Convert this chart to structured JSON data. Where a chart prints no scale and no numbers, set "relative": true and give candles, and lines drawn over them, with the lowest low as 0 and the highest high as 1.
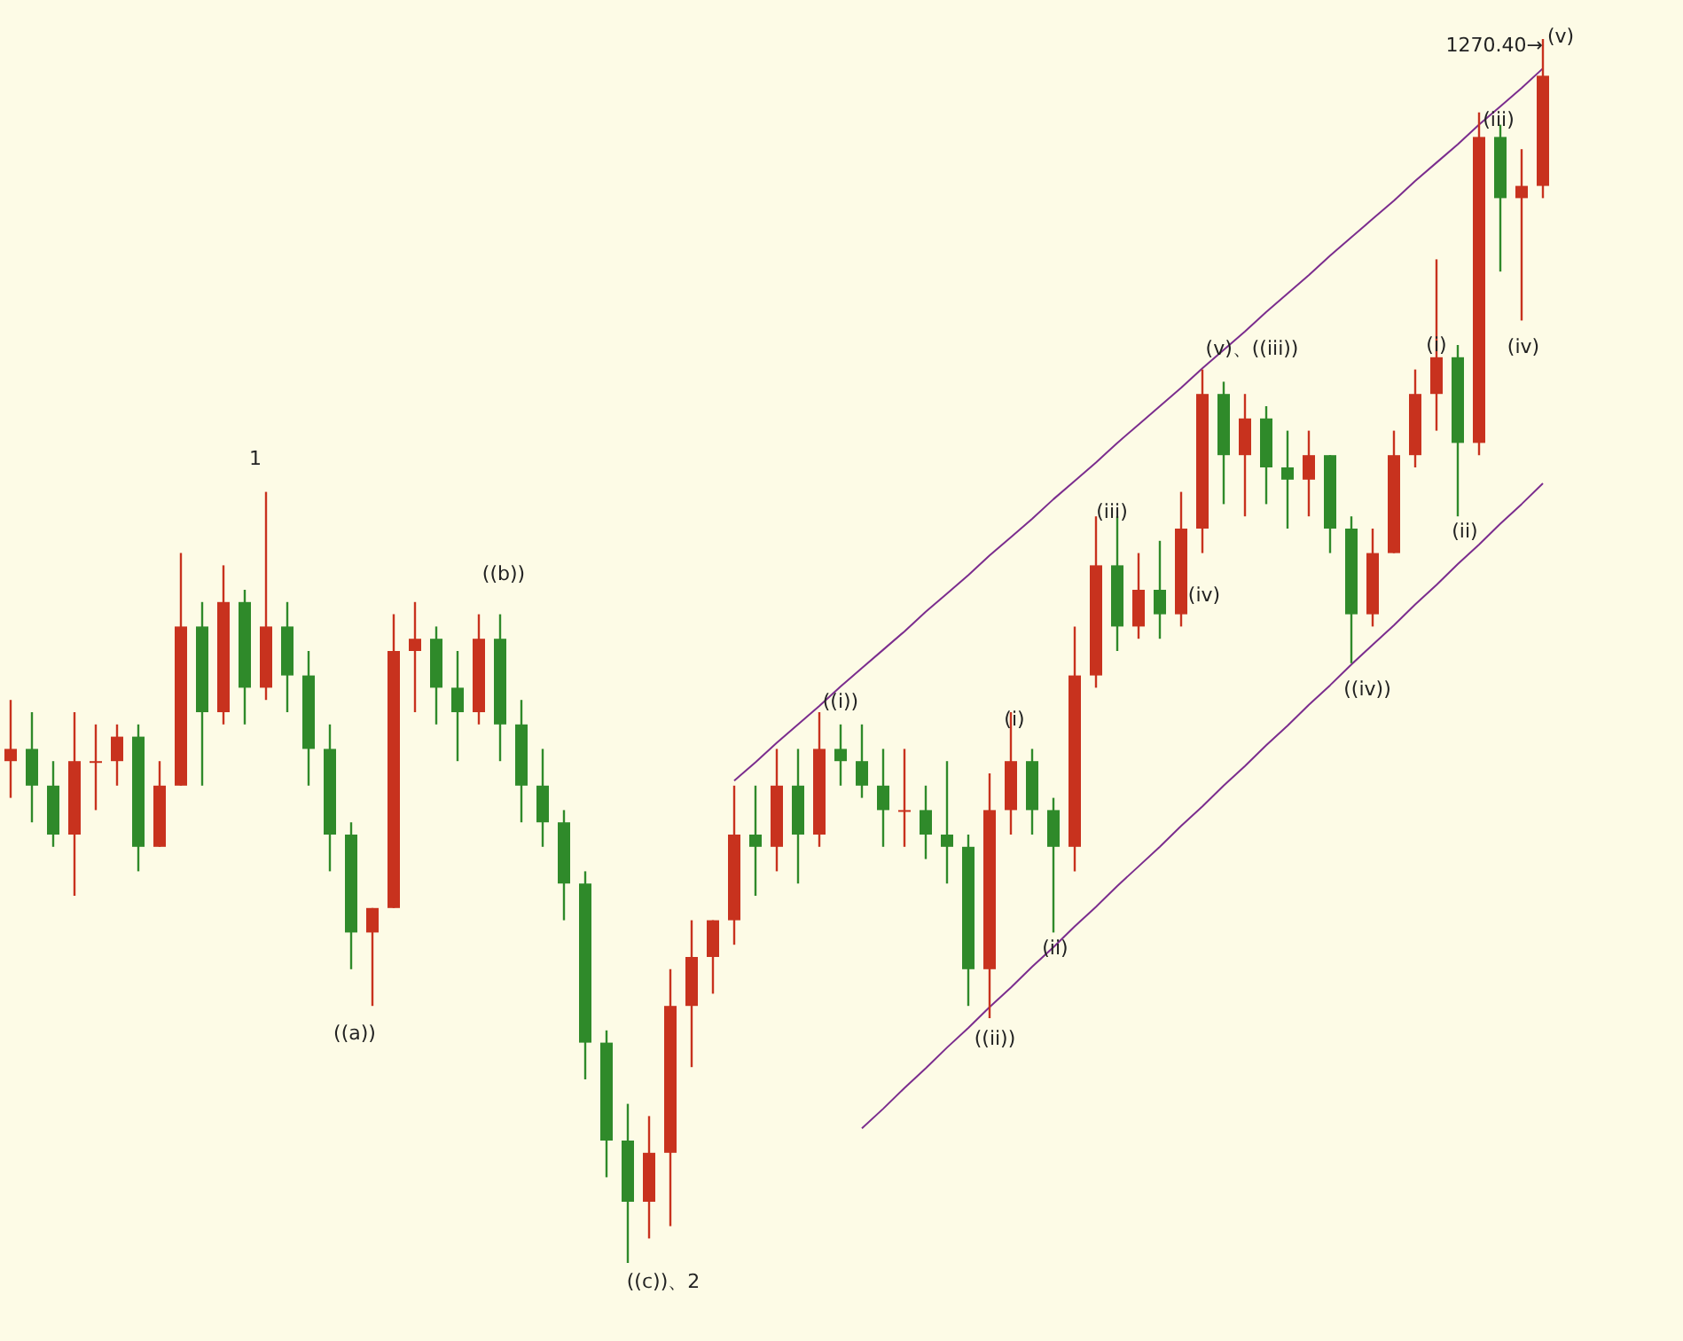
{
  "chart_data": {
    "type": "candlestick",
    "relative": true,
    "categories": [
      null,
      null,
      null,
      null,
      null,
      null,
      null,
      null,
      null,
      null,
      null,
      null,
      null,
      null,
      null,
      null,
      null,
      null,
      null,
      null,
      null,
      null,
      null,
      null,
      null,
      null,
      null,
      null,
      null,
      null,
      null,
      null,
      null,
      null,
      null,
      null,
      null,
      null,
      null,
      null,
      null,
      null,
      null,
      null,
      null,
      null,
      null,
      null,
      null,
      null,
      null,
      null,
      null,
      null,
      null,
      null,
      null,
      null,
      null,
      null,
      null,
      null,
      null,
      null,
      null,
      null,
      null,
      null,
      null,
      null,
      null,
      null,
      null
    ],
    "ohlc": [
      [
        0.41,
        0.46,
        0.38,
        0.42
      ],
      [
        0.42,
        0.45,
        0.36,
        0.39
      ],
      [
        0.39,
        0.41,
        0.34,
        0.35
      ],
      [
        0.35,
        0.45,
        0.3,
        0.41
      ],
      [
        0.41,
        0.44,
        0.37,
        0.41
      ],
      [
        0.41,
        0.44,
        0.39,
        0.43
      ],
      [
        0.43,
        0.44,
        0.32,
        0.34
      ],
      [
        0.34,
        0.41,
        0.34,
        0.39
      ],
      [
        0.39,
        0.58,
        0.39,
        0.52
      ],
      [
        0.52,
        0.54,
        0.39,
        0.45
      ],
      [
        0.45,
        0.57,
        0.44,
        0.54
      ],
      [
        0.54,
        0.55,
        0.44,
        0.47
      ],
      [
        0.47,
        0.63,
        0.46,
        0.52
      ],
      [
        0.52,
        0.54,
        0.45,
        0.48
      ],
      [
        0.48,
        0.5,
        0.39,
        0.42
      ],
      [
        0.42,
        0.44,
        0.32,
        0.35
      ],
      [
        0.35,
        0.36,
        0.24,
        0.27
      ],
      [
        0.27,
        0.29,
        0.21,
        0.29
      ],
      [
        0.29,
        0.53,
        0.29,
        0.5
      ],
      [
        0.5,
        0.54,
        0.45,
        0.51
      ],
      [
        0.51,
        0.52,
        0.44,
        0.47
      ],
      [
        0.47,
        0.5,
        0.41,
        0.45
      ],
      [
        0.45,
        0.53,
        0.44,
        0.51
      ],
      [
        0.51,
        0.53,
        0.41,
        0.44
      ],
      [
        0.44,
        0.46,
        0.36,
        0.39
      ],
      [
        0.39,
        0.42,
        0.34,
        0.36
      ],
      [
        0.36,
        0.37,
        0.28,
        0.31
      ],
      [
        0.31,
        0.32,
        0.15,
        0.18
      ],
      [
        0.18,
        0.19,
        0.07,
        0.1
      ],
      [
        0.1,
        0.13,
        0.0,
        0.05
      ],
      [
        0.05,
        0.12,
        0.02,
        0.09
      ],
      [
        0.09,
        0.24,
        0.03,
        0.21
      ],
      [
        0.21,
        0.28,
        0.16,
        0.25
      ],
      [
        0.25,
        0.28,
        0.22,
        0.28
      ],
      [
        0.28,
        0.39,
        0.26,
        0.35
      ],
      [
        0.35,
        0.39,
        0.3,
        0.34
      ],
      [
        0.34,
        0.42,
        0.32,
        0.39
      ],
      [
        0.39,
        0.42,
        0.31,
        0.35
      ],
      [
        0.35,
        0.45,
        0.34,
        0.42
      ],
      [
        0.42,
        0.44,
        0.39,
        0.41
      ],
      [
        0.41,
        0.44,
        0.38,
        0.39
      ],
      [
        0.39,
        0.42,
        0.34,
        0.37
      ],
      [
        0.37,
        0.42,
        0.34,
        0.37
      ],
      [
        0.37,
        0.39,
        0.33,
        0.35
      ],
      [
        0.35,
        0.41,
        0.31,
        0.34
      ],
      [
        0.34,
        0.35,
        0.21,
        0.24
      ],
      [
        0.24,
        0.4,
        0.2,
        0.37
      ],
      [
        0.37,
        0.45,
        0.35,
        0.41
      ],
      [
        0.41,
        0.42,
        0.35,
        0.37
      ],
      [
        0.37,
        0.38,
        0.27,
        0.34
      ],
      [
        0.34,
        0.52,
        0.32,
        0.48
      ],
      [
        0.48,
        0.61,
        0.47,
        0.57
      ],
      [
        0.57,
        0.61,
        0.5,
        0.52
      ],
      [
        0.52,
        0.58,
        0.51,
        0.55
      ],
      [
        0.55,
        0.59,
        0.51,
        0.53
      ],
      [
        0.53,
        0.63,
        0.52,
        0.6
      ],
      [
        0.6,
        0.73,
        0.58,
        0.71
      ],
      [
        0.71,
        0.72,
        0.62,
        0.66
      ],
      [
        0.66,
        0.71,
        0.61,
        0.69
      ],
      [
        0.69,
        0.7,
        0.62,
        0.65
      ],
      [
        0.65,
        0.68,
        0.6,
        0.64
      ],
      [
        0.64,
        0.68,
        0.61,
        0.66
      ],
      [
        0.66,
        0.66,
        0.58,
        0.6
      ],
      [
        0.6,
        0.61,
        0.49,
        0.53
      ],
      [
        0.53,
        0.6,
        0.52,
        0.58
      ],
      [
        0.58,
        0.68,
        0.58,
        0.66
      ],
      [
        0.66,
        0.73,
        0.65,
        0.71
      ],
      [
        0.71,
        0.82,
        0.68,
        0.74
      ],
      [
        0.74,
        0.75,
        0.61,
        0.67
      ],
      [
        0.67,
        0.94,
        0.66,
        0.92
      ],
      [
        0.92,
        0.93,
        0.81,
        0.87
      ],
      [
        0.87,
        0.91,
        0.77,
        0.88
      ],
      [
        0.88,
        1.0,
        0.87,
        0.97
      ]
    ],
    "series": [
      {
        "type": "line",
        "color": "#7b2d8e",
        "values": [
          null,
          null,
          null,
          null,
          null,
          null,
          null,
          null,
          null,
          null,
          null,
          null,
          null,
          null,
          null,
          null,
          null,
          null,
          null,
          null,
          null,
          null,
          null,
          null,
          null,
          null,
          null,
          null,
          null,
          null,
          null,
          null,
          null,
          null,
          0.394,
          0.409,
          0.425,
          0.44,
          0.455,
          0.471,
          0.486,
          0.501,
          0.516,
          0.532,
          0.547,
          0.562,
          0.578,
          0.593,
          0.608,
          0.624,
          0.639,
          0.654,
          0.67,
          0.685,
          0.7,
          0.715,
          0.731,
          0.746,
          0.761,
          0.777,
          0.792,
          0.807,
          0.823,
          0.838,
          0.853,
          0.868,
          0.884,
          0.899,
          0.914,
          0.93,
          0.945,
          0.96,
          0.976
        ]
      },
      {
        "type": "line",
        "color": "#7b2d8e",
        "values": [
          null,
          null,
          null,
          null,
          null,
          null,
          null,
          null,
          null,
          null,
          null,
          null,
          null,
          null,
          null,
          null,
          null,
          null,
          null,
          null,
          null,
          null,
          null,
          null,
          null,
          null,
          null,
          null,
          null,
          null,
          null,
          null,
          null,
          null,
          null,
          null,
          null,
          null,
          null,
          null,
          0.11,
          0.126,
          0.143,
          0.159,
          0.176,
          0.192,
          0.209,
          0.225,
          0.242,
          0.258,
          0.275,
          0.291,
          0.308,
          0.324,
          0.34,
          0.357,
          0.373,
          0.39,
          0.406,
          0.423,
          0.439,
          0.456,
          0.472,
          0.489,
          0.505,
          0.521,
          0.538,
          0.554,
          0.571,
          0.587,
          0.604,
          0.62,
          0.637
        ]
      }
    ],
    "annotations": [
      "1",
      "((a))",
      "((b))",
      "((c))、2",
      "((i))",
      "((ii))",
      "(i)",
      "(ii)",
      "(iii)",
      "(iv)",
      "(v)、((iii))",
      "((iv))",
      "(i)",
      "(ii)",
      "(iii)",
      "(iv)",
      "(v)",
      "1270.40→"
    ]
  }
}
